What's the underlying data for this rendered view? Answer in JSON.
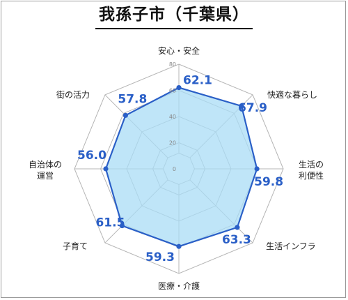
{
  "chart_data": {
    "type": "radar",
    "title": "我孫子市（千葉県）",
    "axes": [
      [
        "安心・安全"
      ],
      [
        "快適な暮らし"
      ],
      [
        "生活の",
        "利便性"
      ],
      [
        "生活インフラ"
      ],
      [
        "医療・介護"
      ],
      [
        "子育て"
      ],
      [
        "自治体の",
        "運営"
      ],
      [
        "街の活力"
      ]
    ],
    "values": [
      62.1,
      67.9,
      59.8,
      63.3,
      59.3,
      61.5,
      56.0,
      57.8
    ],
    "value_labels": [
      "62.1",
      "67.9",
      "59.8",
      "63.3",
      "59.3",
      "61.5",
      "56.0",
      "57.8"
    ],
    "range": [
      0,
      80
    ],
    "ticks": [
      "0",
      "20",
      "40",
      "60",
      "80"
    ],
    "colors": {
      "line": "#2a5fc7",
      "fill": "#a9dcf6",
      "grid": "#b5b5b5",
      "value_text": "#2a5fc7"
    }
  }
}
